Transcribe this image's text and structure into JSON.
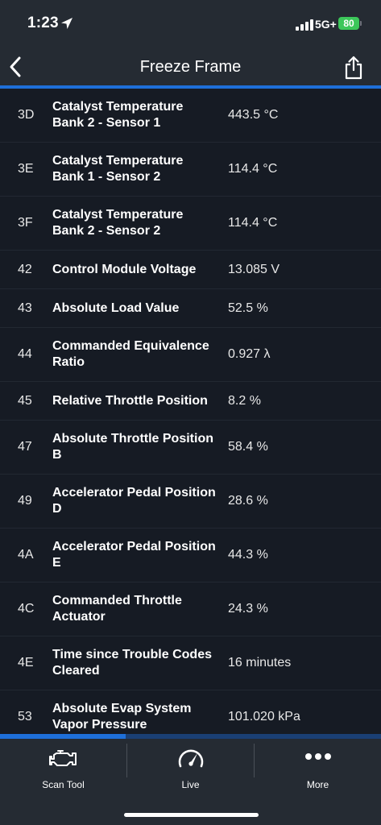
{
  "status_bar": {
    "time": "1:23",
    "network": "5G+",
    "battery": "80"
  },
  "nav": {
    "title": "Freeze Frame"
  },
  "rows": [
    {
      "pid": "3D",
      "name": "Catalyst Temperature Bank 2 - Sensor 1",
      "value": "443.5 °C"
    },
    {
      "pid": "3E",
      "name": "Catalyst Temperature Bank 1 - Sensor 2",
      "value": "114.4 °C"
    },
    {
      "pid": "3F",
      "name": "Catalyst Temperature Bank 2 - Sensor 2",
      "value": "114.4 °C"
    },
    {
      "pid": "42",
      "name": "Control Module Voltage",
      "value": "13.085 V"
    },
    {
      "pid": "43",
      "name": "Absolute Load Value",
      "value": "52.5 %"
    },
    {
      "pid": "44",
      "name": "Commanded Equivalence Ratio",
      "value": "0.927 λ"
    },
    {
      "pid": "45",
      "name": "Relative Throttle Position",
      "value": "8.2 %"
    },
    {
      "pid": "47",
      "name": "Absolute Throttle Position B",
      "value": "58.4 %"
    },
    {
      "pid": "49",
      "name": "Accelerator Pedal Position D",
      "value": "28.6 %"
    },
    {
      "pid": "4A",
      "name": "Accelerator Pedal Position E",
      "value": "44.3 %"
    },
    {
      "pid": "4C",
      "name": "Commanded Throttle Actuator",
      "value": "24.3 %"
    },
    {
      "pid": "4E",
      "name": "Time since Trouble Codes Cleared",
      "value": "16 minutes"
    },
    {
      "pid": "53",
      "name": "Absolute Evap System Vapor Pressure",
      "value": "101.020 kPa"
    }
  ],
  "tabs": [
    {
      "label": "Scan Tool",
      "icon": "engine-icon"
    },
    {
      "label": "Live",
      "icon": "gauge-icon"
    },
    {
      "label": "More",
      "icon": "more-icon"
    }
  ],
  "colors": {
    "accent": "#1e6fd9",
    "background": "#161b24",
    "bar": "#252b33",
    "battery": "#3cc75a"
  },
  "progress": {
    "fraction": 0.33
  }
}
